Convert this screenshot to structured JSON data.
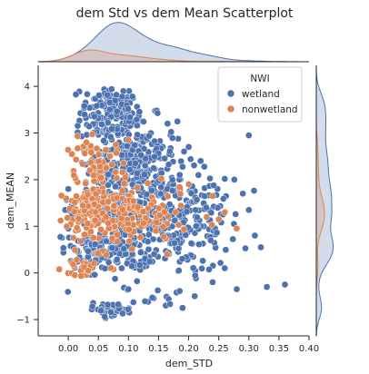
{
  "chart_data": {
    "type": "scatter",
    "title": "dem Std vs dem Mean Scatterplot",
    "xlabel": "dem_STD",
    "ylabel": "dem_MEAN",
    "xlim": [
      -0.05,
      0.4
    ],
    "ylim": [
      -1.35,
      4.45
    ],
    "xticks": [
      "0.00",
      "0.05",
      "0.10",
      "0.15",
      "0.20",
      "0.25",
      "0.30",
      "0.35",
      "0.40"
    ],
    "xtick_values": [
      0.0,
      0.05,
      0.1,
      0.15,
      0.2,
      0.25,
      0.3,
      0.35,
      0.4
    ],
    "yticks": [
      "−1",
      "0",
      "1",
      "2",
      "3",
      "4"
    ],
    "ytick_values": [
      -1,
      0,
      1,
      2,
      3,
      4
    ],
    "grid": false,
    "legend": {
      "title": "NWI",
      "placement": "top-right",
      "entries": [
        "wetland",
        "nonwetland"
      ]
    },
    "series": [
      {
        "name": "wetland",
        "color": "#4c72b0",
        "clusters": [
          {
            "cx": 0.07,
            "cy": 3.45,
            "sx": 0.025,
            "sy": 0.35,
            "n": 170
          },
          {
            "cx": 0.12,
            "cy": 2.55,
            "sx": 0.03,
            "sy": 0.4,
            "n": 120
          },
          {
            "cx": 0.09,
            "cy": 1.5,
            "sx": 0.04,
            "sy": 0.75,
            "n": 330
          },
          {
            "cx": 0.17,
            "cy": 1.2,
            "sx": 0.035,
            "sy": 0.6,
            "n": 180
          },
          {
            "cx": 0.06,
            "cy": 0.45,
            "sx": 0.035,
            "sy": 0.22,
            "n": 130
          },
          {
            "cx": 0.23,
            "cy": 1.1,
            "sx": 0.03,
            "sy": 0.55,
            "n": 55
          },
          {
            "cx": 0.07,
            "cy": -0.78,
            "sx": 0.018,
            "sy": 0.06,
            "n": 45
          },
          {
            "cx": 0.15,
            "cy": -0.6,
            "sx": 0.03,
            "sy": 0.15,
            "n": 12
          }
        ],
        "points": [
          {
            "x": 0.36,
            "y": -0.25
          },
          {
            "x": 0.33,
            "y": -0.3
          },
          {
            "x": 0.3,
            "y": 2.95
          },
          {
            "x": 0.3,
            "y": 1.35
          },
          {
            "x": 0.29,
            "y": 1.7
          },
          {
            "x": 0.31,
            "y": 0.8
          },
          {
            "x": 0.32,
            "y": 0.55
          },
          {
            "x": 0.28,
            "y": -0.35
          },
          {
            "x": 0.26,
            "y": 0.1
          },
          {
            "x": 0.24,
            "y": -0.2
          },
          {
            "x": -0.005,
            "y": 1.35
          },
          {
            "x": 0.0,
            "y": 1.8
          },
          {
            "x": 0.0,
            "y": 0.95
          },
          {
            "x": 0.165,
            "y": 3.2
          },
          {
            "x": 0.2,
            "y": 2.7
          },
          {
            "x": 0.22,
            "y": 2.4
          },
          {
            "x": 0.21,
            "y": -0.5
          },
          {
            "x": 0.19,
            "y": -0.75
          },
          {
            "x": 0.04,
            "y": -0.72
          },
          {
            "x": 0.1,
            "y": -0.35
          }
        ]
      },
      {
        "name": "nonwetland",
        "color": "#dd8452",
        "clusters": [
          {
            "cx": 0.05,
            "cy": 2.2,
            "sx": 0.025,
            "sy": 0.35,
            "n": 70
          },
          {
            "cx": 0.05,
            "cy": 1.25,
            "sx": 0.035,
            "sy": 0.35,
            "n": 150
          },
          {
            "cx": 0.12,
            "cy": 1.15,
            "sx": 0.04,
            "sy": 0.3,
            "n": 80
          },
          {
            "cx": 0.03,
            "cy": 0.1,
            "sx": 0.02,
            "sy": 0.12,
            "n": 25
          }
        ],
        "points": [
          {
            "x": 0.2,
            "y": 1.9
          },
          {
            "x": 0.23,
            "y": 1.2
          },
          {
            "x": 0.25,
            "y": 1.15
          },
          {
            "x": 0.28,
            "y": 0.95
          },
          {
            "x": 0.24,
            "y": 1.65
          },
          {
            "x": 0.26,
            "y": 1.3
          },
          {
            "x": 0.1,
            "y": 2.85
          },
          {
            "x": 0.03,
            "y": 2.8
          }
        ]
      }
    ]
  }
}
